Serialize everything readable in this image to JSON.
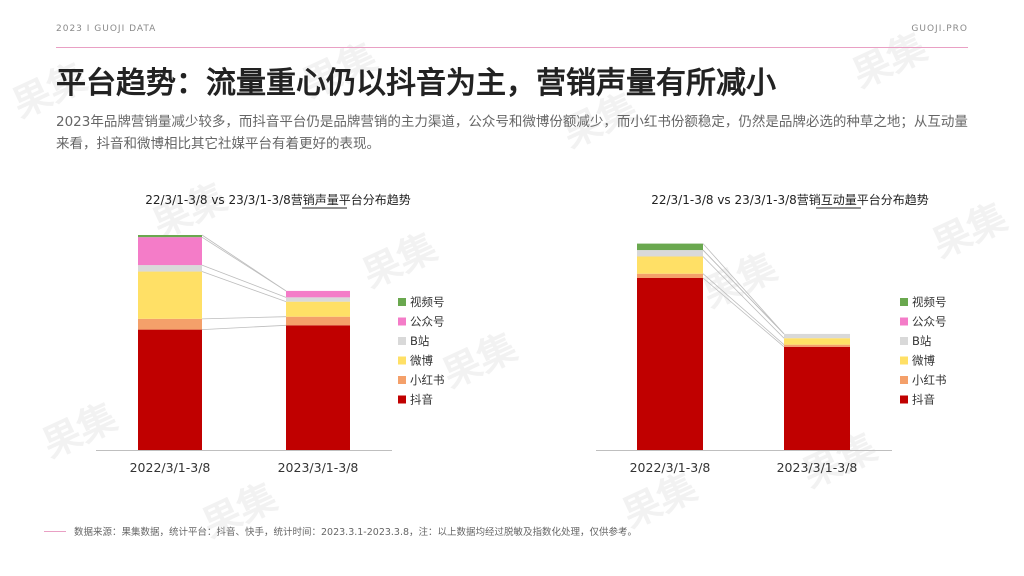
{
  "header": {
    "brand_left": "2023 I GUOJI DATA",
    "brand_right": "GUOJI.PRO"
  },
  "title": "平台趋势：流量重心仍以抖音为主，营销声量有所减小",
  "description": "2023年品牌营销量减少较多，而抖音平台仍是品牌营销的主力渠道，公众号和微博份额减少，而小红书份额稳定，仍然是品牌必选的种草之地；从互动量来看，抖音和微博相比其它社媒平台有着更好的表现。",
  "footer": {
    "source": "数据来源：果集数据，统计平台：抖音、快手，统计时间：2023.3.1-2023.3.8，注：以上数据均经过脱敏及指数化处理，仅供参考。"
  },
  "watermark_text": "果集",
  "colors": {
    "视频号": "#6aa84f",
    "公众号": "#f47cc8",
    "B站": "#d9d9d9",
    "微博": "#ffe066",
    "小红书": "#f4a06a",
    "抖音": "#c00000"
  },
  "chart_data": [
    {
      "type": "bar",
      "stacked": true,
      "title": "22/3/1-3/8 vs 23/3/1-3/8营销声量平台分布趋势",
      "categories": [
        "2022/3/1-3/8",
        "2023/3/1-3/8"
      ],
      "ylim": [
        0,
        100
      ],
      "legend_position": "right",
      "series": [
        {
          "name": "抖音",
          "values": [
            56,
            58
          ]
        },
        {
          "name": "小红书",
          "values": [
            5,
            4
          ]
        },
        {
          "name": "微博",
          "values": [
            22,
            7
          ]
        },
        {
          "name": "B站",
          "values": [
            3,
            2
          ]
        },
        {
          "name": "公众号",
          "values": [
            13,
            3
          ]
        },
        {
          "name": "视频号",
          "values": [
            1,
            0
          ]
        }
      ]
    },
    {
      "type": "bar",
      "stacked": true,
      "title": "22/3/1-3/8 vs 23/3/1-3/8营销互动量平台分布趋势",
      "categories": [
        "2022/3/1-3/8",
        "2023/3/1-3/8"
      ],
      "ylim": [
        0,
        100
      ],
      "legend_position": "right",
      "series": [
        {
          "name": "抖音",
          "values": [
            80,
            48
          ]
        },
        {
          "name": "小红书",
          "values": [
            2,
            1
          ]
        },
        {
          "name": "微博",
          "values": [
            8,
            3
          ]
        },
        {
          "name": "B站",
          "values": [
            3,
            2
          ]
        },
        {
          "name": "公众号",
          "values": [
            0,
            0
          ]
        },
        {
          "name": "视频号",
          "values": [
            3,
            0
          ]
        }
      ]
    }
  ]
}
